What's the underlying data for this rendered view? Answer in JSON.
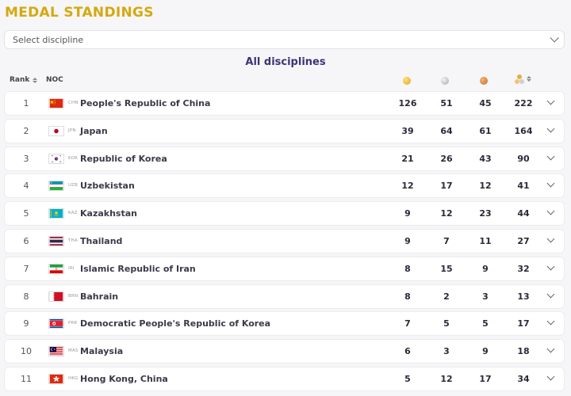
{
  "header": {
    "title": "MEDAL STANDINGS"
  },
  "filter": {
    "placeholder": "Select discipline"
  },
  "subtitle": "All disciplines",
  "columns": {
    "rank": "Rank",
    "noc": "NOC"
  },
  "medal_icons": {
    "gold": "gold-medal-icon",
    "silver": "silver-medal-icon",
    "bronze": "bronze-medal-icon",
    "total": "total-medals-icon"
  },
  "rows": [
    {
      "rank": "1",
      "code": "CHN",
      "name": "People's Republic of China",
      "gold": "126",
      "silver": "51",
      "bronze": "45",
      "total": "222",
      "flag": "chn"
    },
    {
      "rank": "2",
      "code": "JPN",
      "name": "Japan",
      "gold": "39",
      "silver": "64",
      "bronze": "61",
      "total": "164",
      "flag": "jpn"
    },
    {
      "rank": "3",
      "code": "KOR",
      "name": "Republic of Korea",
      "gold": "21",
      "silver": "26",
      "bronze": "43",
      "total": "90",
      "flag": "kor"
    },
    {
      "rank": "4",
      "code": "UZB",
      "name": "Uzbekistan",
      "gold": "12",
      "silver": "17",
      "bronze": "12",
      "total": "41",
      "flag": "uzb"
    },
    {
      "rank": "5",
      "code": "KAZ",
      "name": "Kazakhstan",
      "gold": "9",
      "silver": "12",
      "bronze": "23",
      "total": "44",
      "flag": "kaz"
    },
    {
      "rank": "6",
      "code": "THA",
      "name": "Thailand",
      "gold": "9",
      "silver": "7",
      "bronze": "11",
      "total": "27",
      "flag": "tha"
    },
    {
      "rank": "7",
      "code": "IRI",
      "name": "Islamic Republic of Iran",
      "gold": "8",
      "silver": "15",
      "bronze": "9",
      "total": "32",
      "flag": "iri"
    },
    {
      "rank": "8",
      "code": "BRN",
      "name": "Bahrain",
      "gold": "8",
      "silver": "2",
      "bronze": "3",
      "total": "13",
      "flag": "brn"
    },
    {
      "rank": "9",
      "code": "PRK",
      "name": "Democratic People's Republic of Korea",
      "gold": "7",
      "silver": "5",
      "bronze": "5",
      "total": "17",
      "flag": "prk"
    },
    {
      "rank": "10",
      "code": "MAS",
      "name": "Malaysia",
      "gold": "6",
      "silver": "3",
      "bronze": "9",
      "total": "18",
      "flag": "mas"
    },
    {
      "rank": "11",
      "code": "HKG",
      "name": "Hong Kong, China",
      "gold": "5",
      "silver": "12",
      "bronze": "17",
      "total": "34",
      "flag": "hkg"
    }
  ]
}
